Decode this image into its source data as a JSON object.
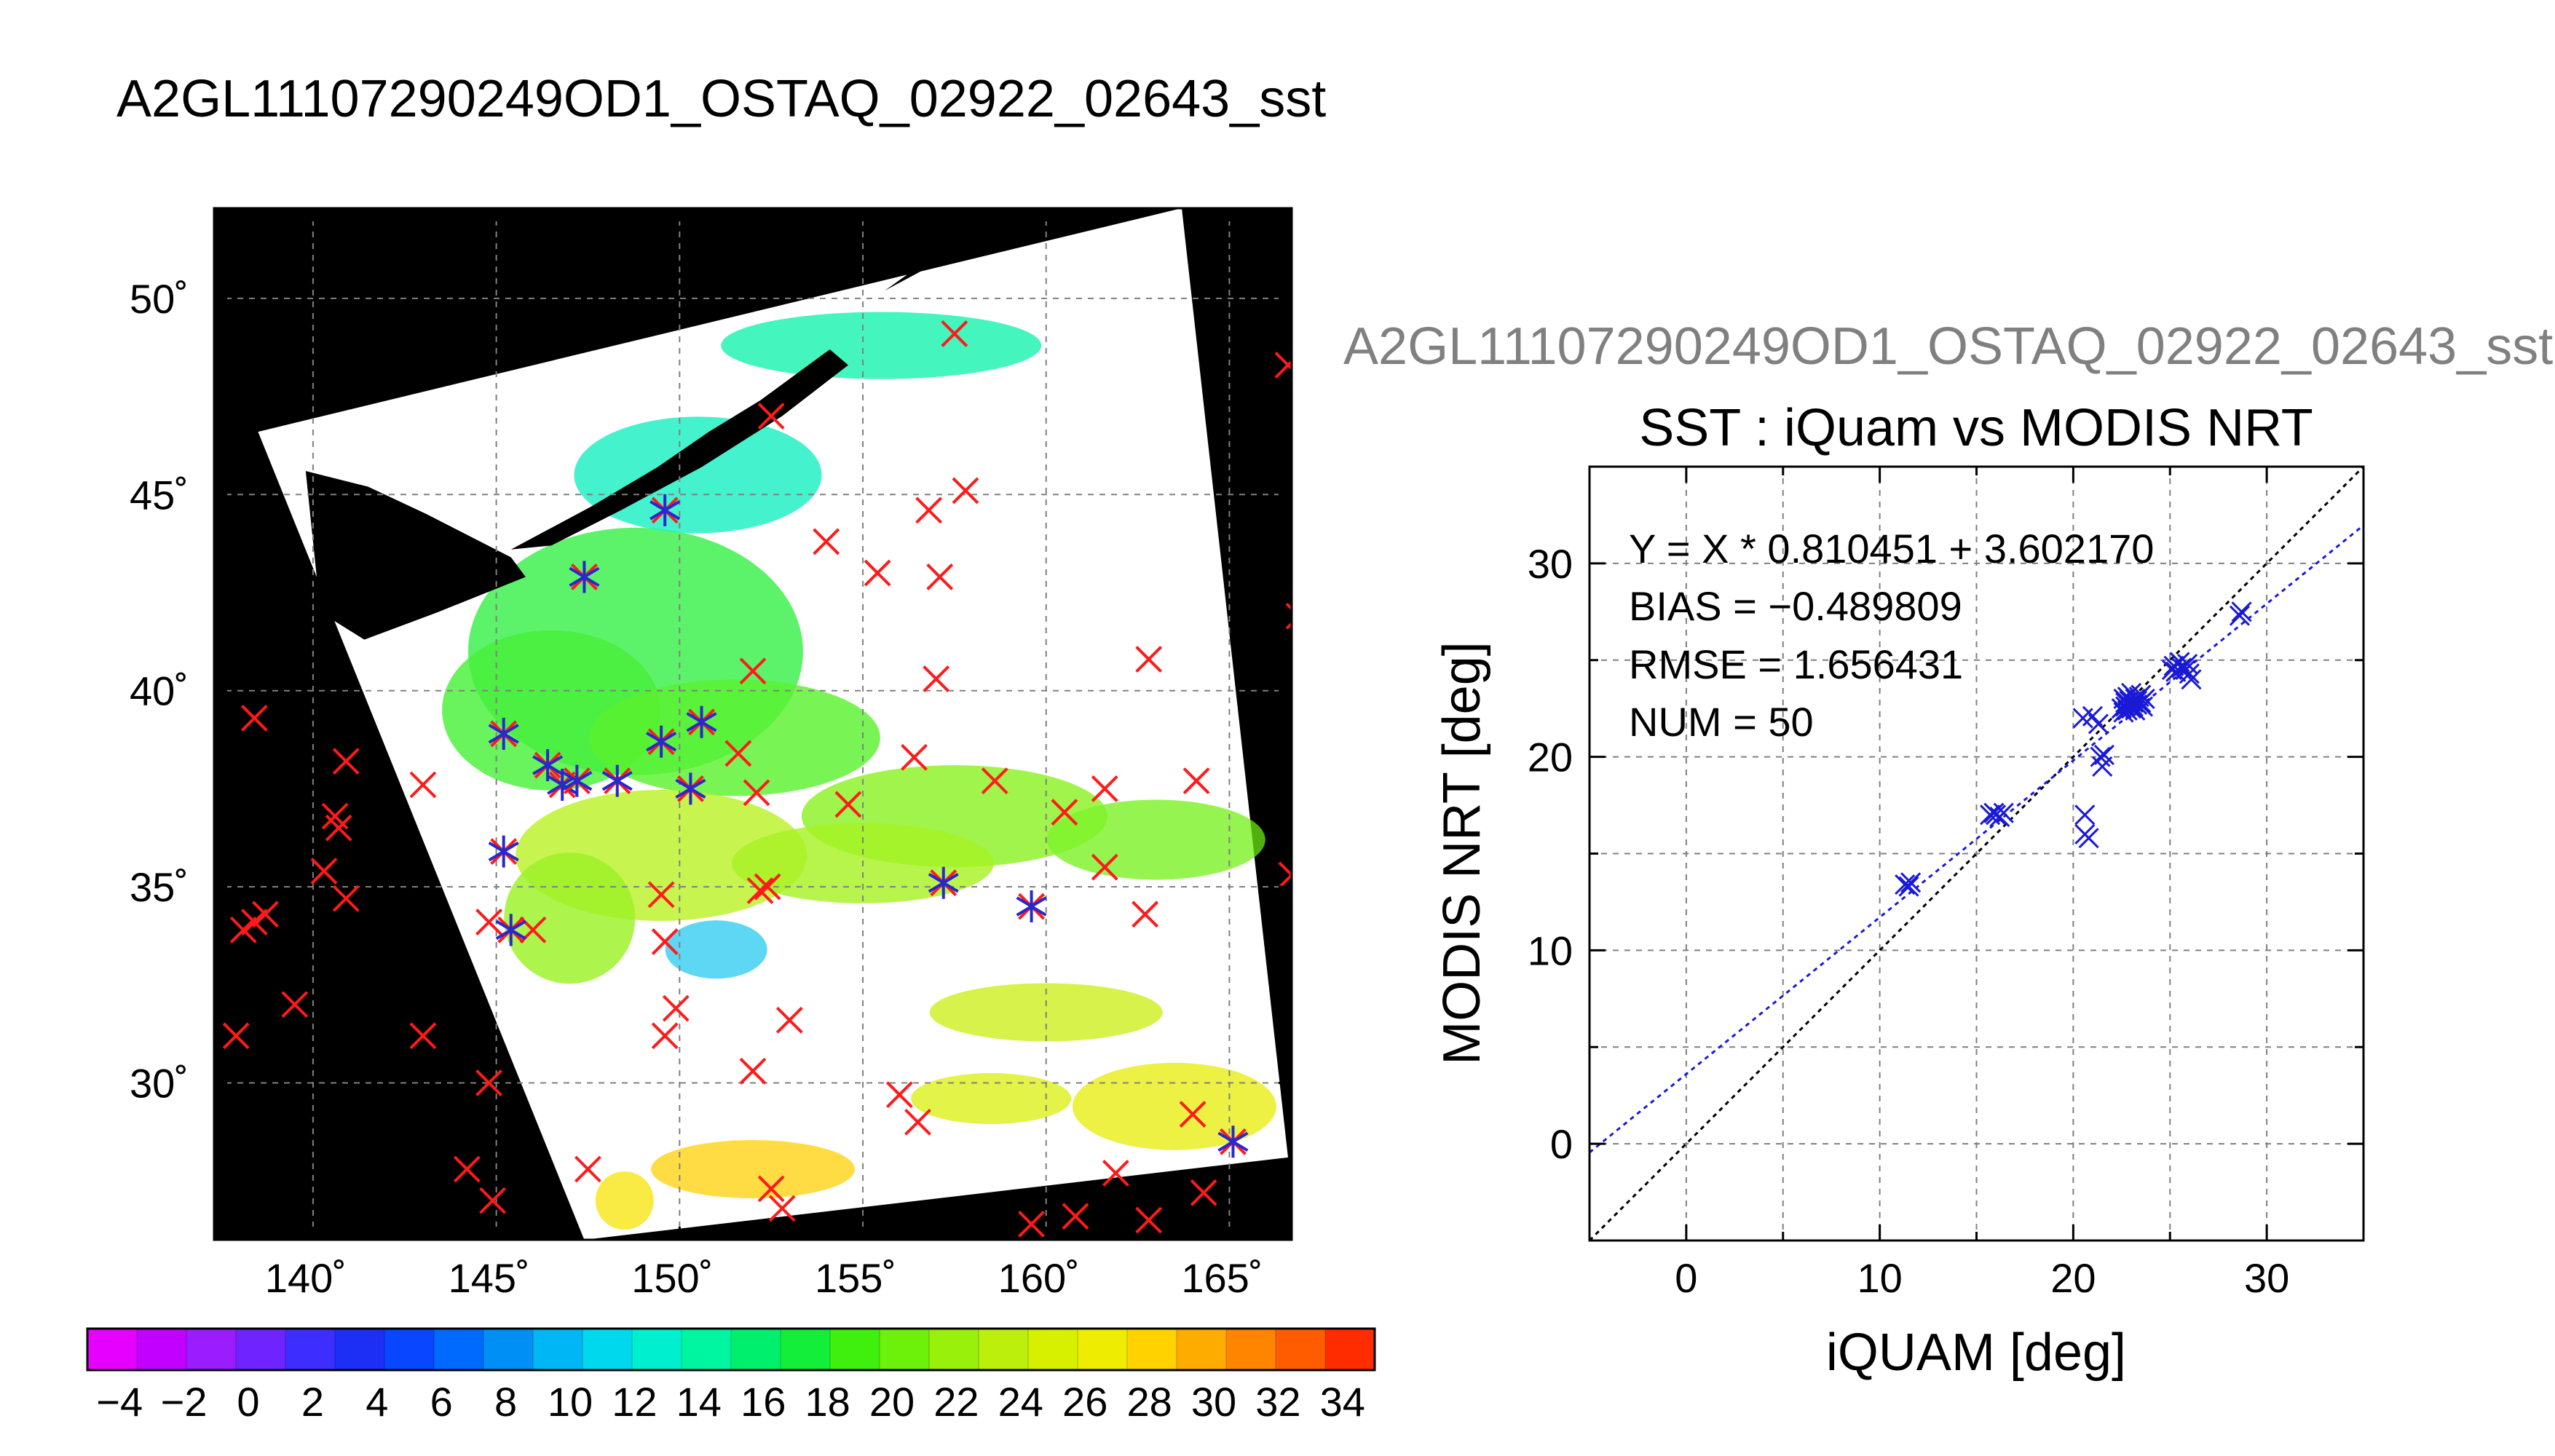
{
  "figure": {
    "main_title": "A2GL11107290249OD1_OSTAQ_02922_02643_sst",
    "scatter_file_title": "A2GL11107290249OD1_OSTAQ_02922_02643_sst"
  },
  "map": {
    "lon_range": [
      137.3,
      166.7
    ],
    "lat_range": [
      26.0,
      52.3
    ],
    "lon_ticks": [
      140,
      145,
      150,
      155,
      160,
      165
    ],
    "lat_ticks": [
      30,
      35,
      40,
      45,
      50
    ],
    "lon_tick_labels": [
      "140˚",
      "145˚",
      "150˚",
      "155˚",
      "160˚",
      "165˚"
    ],
    "lat_tick_labels": [
      "30˚",
      "35˚",
      "40˚",
      "45˚",
      "50˚"
    ],
    "background_color": "#000000",
    "cloud_color": "#ffffff",
    "swath_corners": [
      [
        138.5,
        46.6
      ],
      [
        163.7,
        52.3
      ],
      [
        166.6,
        28.1
      ],
      [
        147.4,
        26.0
      ]
    ],
    "in_swath_buoys": [
      [
        149.6,
        44.6
      ],
      [
        147.4,
        42.9
      ],
      [
        145.2,
        38.9
      ],
      [
        146.4,
        38.1
      ],
      [
        146.8,
        37.6
      ],
      [
        147.2,
        37.7
      ],
      [
        148.3,
        37.7
      ],
      [
        149.5,
        38.7
      ],
      [
        150.6,
        39.2
      ],
      [
        150.3,
        37.5
      ],
      [
        145.2,
        35.9
      ],
      [
        145.4,
        33.9
      ],
      [
        157.2,
        35.1
      ],
      [
        159.6,
        34.5
      ],
      [
        165.1,
        28.5
      ]
    ],
    "red_only_buoys": [
      [
        152.5,
        47.0
      ],
      [
        157.5,
        49.1
      ],
      [
        166.6,
        48.3
      ],
      [
        157.8,
        45.1
      ],
      [
        156.8,
        44.6
      ],
      [
        154.0,
        43.8
      ],
      [
        155.4,
        43.0
      ],
      [
        157.1,
        42.9
      ],
      [
        166.9,
        41.9
      ],
      [
        152.0,
        40.5
      ],
      [
        157.0,
        40.3
      ],
      [
        162.8,
        40.8
      ],
      [
        138.4,
        39.3
      ],
      [
        151.6,
        38.4
      ],
      [
        140.9,
        38.2
      ],
      [
        143.0,
        37.6
      ],
      [
        140.6,
        36.8
      ],
      [
        140.7,
        36.5
      ],
      [
        152.1,
        37.4
      ],
      [
        154.6,
        37.1
      ],
      [
        156.4,
        38.3
      ],
      [
        158.6,
        37.7
      ],
      [
        161.6,
        37.5
      ],
      [
        164.1,
        37.7
      ],
      [
        160.5,
        36.9
      ],
      [
        140.3,
        35.4
      ],
      [
        140.9,
        34.7
      ],
      [
        152.2,
        34.9
      ],
      [
        152.4,
        35.0
      ],
      [
        149.5,
        34.8
      ],
      [
        161.6,
        35.5
      ],
      [
        166.7,
        35.3
      ],
      [
        138.1,
        33.9
      ],
      [
        138.4,
        34.1
      ],
      [
        138.7,
        34.3
      ],
      [
        144.8,
        34.1
      ],
      [
        146.0,
        33.9
      ],
      [
        149.6,
        33.6
      ],
      [
        162.7,
        34.3
      ],
      [
        137.9,
        31.2
      ],
      [
        139.5,
        32.0
      ],
      [
        143.0,
        31.2
      ],
      [
        149.9,
        31.9
      ],
      [
        149.6,
        31.2
      ],
      [
        153.0,
        31.6
      ],
      [
        152.0,
        30.3
      ],
      [
        144.8,
        30.0
      ],
      [
        156.0,
        29.7
      ],
      [
        156.5,
        29.0
      ],
      [
        164.0,
        29.2
      ],
      [
        144.2,
        27.8
      ],
      [
        147.5,
        27.8
      ],
      [
        144.9,
        27.0
      ],
      [
        152.5,
        27.3
      ],
      [
        152.8,
        26.8
      ],
      [
        159.6,
        26.4
      ],
      [
        160.8,
        26.6
      ],
      [
        161.9,
        27.7
      ],
      [
        162.8,
        26.5
      ],
      [
        164.3,
        27.2
      ]
    ]
  },
  "colorbar": {
    "tick_labels": [
      "−4",
      "−2",
      "0",
      "2",
      "4",
      "6",
      "8",
      "10",
      "12",
      "14",
      "16",
      "18",
      "20",
      "22",
      "24",
      "26",
      "28",
      "30",
      "32",
      "34"
    ],
    "range": [
      -5,
      35
    ],
    "colors": [
      "#e600ff",
      "#c200ff",
      "#9a1cff",
      "#6f24ff",
      "#3e2dff",
      "#1d2ef5",
      "#0846ff",
      "#006aff",
      "#0090f5",
      "#00b6f5",
      "#00d8ee",
      "#00f0cf",
      "#00f5a0",
      "#00f06d",
      "#12ee3a",
      "#3ff00e",
      "#6df00a",
      "#98f00b",
      "#bcef0c",
      "#d6f000",
      "#eeec00",
      "#ffd200",
      "#ffac00",
      "#ff8400",
      "#ff5c00",
      "#ff2c00"
    ]
  },
  "scatter": {
    "title": "SST : iQuam vs MODIS NRT",
    "xlabel": "iQUAM [deg]",
    "ylabel": "MODIS NRT [deg]",
    "xlim": [
      -5,
      35
    ],
    "ylim": [
      -5,
      35
    ],
    "x_ticks": [
      0,
      10,
      20,
      30
    ],
    "y_ticks": [
      0,
      10,
      20,
      30
    ],
    "x_tick_labels": [
      "0",
      "10",
      "20",
      "30"
    ],
    "y_tick_labels": [
      "0",
      "10",
      "20",
      "30"
    ],
    "stats": {
      "equation": "Y = X * 0.810451 + 3.602170",
      "bias": "BIAS = −0.489809",
      "rmse": "RMSE = 1.656431",
      "num": "NUM = 50"
    },
    "fit": {
      "slope": 0.810451,
      "intercept": 3.60217
    },
    "marker_color": "#1a1ad6",
    "one_to_one_color": "#000000"
  },
  "chart_data": {
    "type": "scatter",
    "title": "SST : iQuam vs MODIS NRT",
    "xlabel": "iQUAM [deg]",
    "ylabel": "MODIS NRT [deg]",
    "xlim": [
      -5,
      35
    ],
    "ylim": [
      -5,
      35
    ],
    "grid": true,
    "series": [
      {
        "x": [
          11.3,
          11.5,
          11.6,
          15.7,
          15.9,
          16.0,
          16.2,
          16.4,
          20.5,
          20.6,
          20.6,
          20.8,
          21.0,
          21.3,
          21.4,
          21.5,
          21.6,
          22.5,
          22.6,
          22.6,
          22.7,
          22.7,
          22.8,
          22.8,
          22.9,
          22.9,
          23.0,
          23.0,
          23.1,
          23.1,
          23.2,
          23.2,
          23.3,
          23.3,
          23.4,
          23.5,
          23.5,
          23.6,
          23.7,
          25.1,
          25.2,
          25.3,
          25.5,
          25.6,
          25.8,
          25.9,
          26.0,
          26.1,
          28.6,
          28.7
        ],
        "y": [
          13.4,
          13.3,
          13.5,
          17.0,
          17.1,
          17.0,
          16.9,
          17.1,
          22.0,
          17.0,
          16.0,
          15.8,
          22.1,
          21.7,
          20.0,
          19.5,
          20.1,
          22.5,
          23.0,
          22.3,
          22.8,
          22.6,
          22.4,
          23.1,
          22.7,
          22.9,
          22.5,
          23.3,
          22.8,
          22.6,
          23.0,
          22.4,
          22.9,
          22.7,
          23.1,
          23.2,
          22.8,
          22.6,
          23.0,
          24.5,
          24.7,
          24.4,
          24.9,
          24.6,
          24.5,
          24.8,
          24.3,
          24.0,
          27.3,
          27.5
        ]
      }
    ]
  }
}
